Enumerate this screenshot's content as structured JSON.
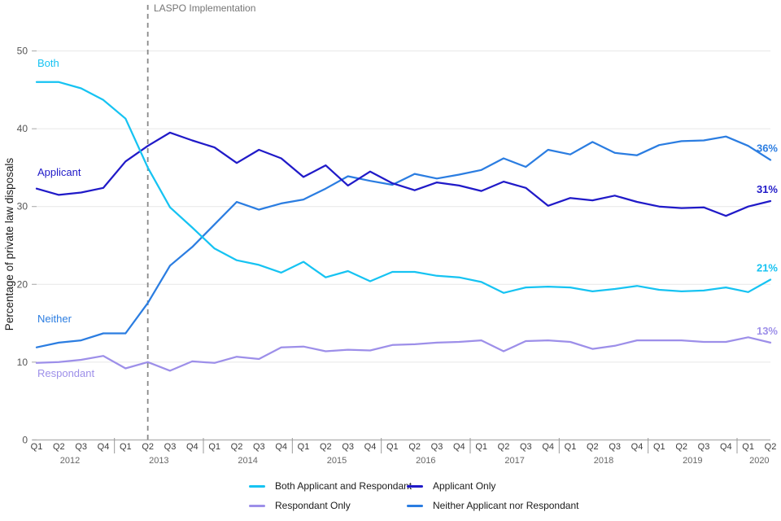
{
  "chart_data": {
    "type": "line",
    "title": "",
    "ylabel": "Percentage of private law disposals",
    "xlabel": "",
    "ylim": [
      0,
      50
    ],
    "yticks": [
      0,
      10,
      20,
      30,
      40,
      50
    ],
    "grid": "horizontal",
    "legend_position": "bottom",
    "annotation": {
      "label": "LASPO Implementation",
      "x_index": 5,
      "style": "dashed-vertical-line"
    },
    "categories": [
      "Q1",
      "Q2",
      "Q3",
      "Q4",
      "Q1",
      "Q2",
      "Q3",
      "Q4",
      "Q1",
      "Q2",
      "Q3",
      "Q4",
      "Q1",
      "Q2",
      "Q3",
      "Q4",
      "Q1",
      "Q2",
      "Q3",
      "Q4",
      "Q1",
      "Q2",
      "Q3",
      "Q4",
      "Q1",
      "Q2",
      "Q3",
      "Q4",
      "Q1",
      "Q2",
      "Q3",
      "Q4",
      "Q1",
      "Q2"
    ],
    "year_groups": [
      {
        "label": "2012",
        "quarters": 4
      },
      {
        "label": "2013",
        "quarters": 4
      },
      {
        "label": "2014",
        "quarters": 4
      },
      {
        "label": "2015",
        "quarters": 4
      },
      {
        "label": "2016",
        "quarters": 4
      },
      {
        "label": "2017",
        "quarters": 4
      },
      {
        "label": "2018",
        "quarters": 4
      },
      {
        "label": "2019",
        "quarters": 4
      },
      {
        "label": "2020",
        "quarters": 2
      }
    ],
    "series": [
      {
        "key": "both",
        "name": "Both Applicant and Respondant",
        "plot_label": "Both",
        "end_label": "21%",
        "color": "#16C3F2",
        "values": [
          46.0,
          46.0,
          45.2,
          43.7,
          41.3,
          35.0,
          29.9,
          27.3,
          24.6,
          23.1,
          22.5,
          21.5,
          22.9,
          20.9,
          21.7,
          20.4,
          21.6,
          21.6,
          21.1,
          20.9,
          20.3,
          18.9,
          19.6,
          19.7,
          19.6,
          19.1,
          19.4,
          19.8,
          19.3,
          19.1,
          19.2,
          19.6,
          19.0,
          20.6
        ]
      },
      {
        "key": "applicant",
        "name": "Applicant Only",
        "plot_label": "Applicant",
        "end_label": "31%",
        "color": "#201AC8",
        "values": [
          32.3,
          31.5,
          31.8,
          32.4,
          35.8,
          37.8,
          39.5,
          38.5,
          37.6,
          35.6,
          37.3,
          36.2,
          33.8,
          35.3,
          32.7,
          34.5,
          33.0,
          32.1,
          33.1,
          32.7,
          32.0,
          33.2,
          32.4,
          30.1,
          31.1,
          30.8,
          31.4,
          30.6,
          30.0,
          29.8,
          29.9,
          28.8,
          30.0,
          30.7
        ]
      },
      {
        "key": "respondant",
        "name": "Respondant Only",
        "plot_label": "Respondant",
        "end_label": "13%",
        "color": "#9D8FE9",
        "values": [
          9.9,
          10.0,
          10.3,
          10.8,
          9.2,
          10.0,
          8.9,
          10.1,
          9.9,
          10.7,
          10.4,
          11.9,
          12.0,
          11.4,
          11.6,
          11.5,
          12.2,
          12.3,
          12.5,
          12.6,
          12.8,
          11.4,
          12.7,
          12.8,
          12.6,
          11.7,
          12.1,
          12.8,
          12.8,
          12.8,
          12.6,
          12.6,
          13.2,
          12.5
        ]
      },
      {
        "key": "neither",
        "name": "Neither Applicant nor Respondant",
        "plot_label": "Neither",
        "end_label": "36%",
        "color": "#2B7DE1",
        "values": [
          11.9,
          12.5,
          12.8,
          13.7,
          13.7,
          17.6,
          22.4,
          24.8,
          27.7,
          30.6,
          29.6,
          30.4,
          30.9,
          32.3,
          33.9,
          33.3,
          32.8,
          34.2,
          33.6,
          34.1,
          34.7,
          36.2,
          35.1,
          37.3,
          36.7,
          38.3,
          36.9,
          36.6,
          37.9,
          38.4,
          38.5,
          39.0,
          37.8,
          36.0
        ]
      }
    ]
  }
}
